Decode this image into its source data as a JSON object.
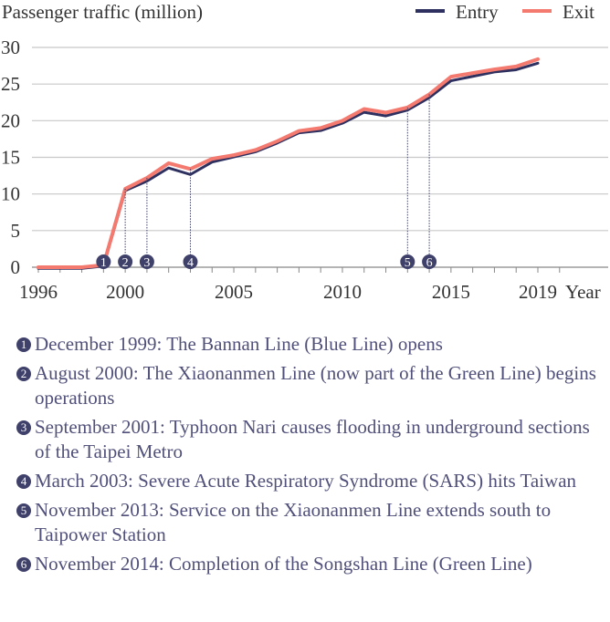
{
  "chart_data": {
    "type": "line",
    "title": "",
    "ylabel": "Passenger traffic (million)",
    "xlabel": "Year",
    "ylim": [
      0,
      30
    ],
    "yticks": [
      0,
      5,
      10,
      15,
      20,
      25,
      30
    ],
    "xlim": [
      1996,
      2019
    ],
    "xticks": [
      1996,
      2000,
      2005,
      2010,
      2015,
      2019
    ],
    "x": [
      1996,
      1997,
      1998,
      1999,
      2000,
      2001,
      2002,
      2003,
      2004,
      2005,
      2006,
      2007,
      2008,
      2009,
      2010,
      2011,
      2012,
      2013,
      2014,
      2015,
      2016,
      2017,
      2018,
      2019
    ],
    "series": [
      {
        "name": "Entry",
        "color": "#2e3160",
        "values": [
          0,
          0,
          0,
          0.3,
          10.6,
          11.9,
          13.7,
          12.8,
          14.5,
          15.2,
          15.9,
          17.1,
          18.5,
          18.8,
          19.8,
          21.3,
          20.8,
          21.6,
          23.3,
          25.6,
          26.2,
          26.8,
          27.1,
          28.0
        ]
      },
      {
        "name": "Exit",
        "color": "#f47a70",
        "values": [
          0,
          0,
          0,
          0.3,
          10.7,
          12.2,
          14.2,
          13.4,
          14.8,
          15.3,
          16.0,
          17.2,
          18.6,
          19.0,
          20.0,
          21.6,
          21.1,
          21.8,
          23.6,
          26.0,
          26.5,
          27.0,
          27.4,
          28.4
        ]
      }
    ],
    "markers": [
      {
        "label": "1",
        "year": 1999
      },
      {
        "label": "2",
        "year": 2000
      },
      {
        "label": "3",
        "year": 2001
      },
      {
        "label": "4",
        "year": 2003
      },
      {
        "label": "5",
        "year": 2013
      },
      {
        "label": "6",
        "year": 2014
      }
    ],
    "legend": "top-right",
    "grid": true
  },
  "notes": [
    {
      "num": "1",
      "text": "December 1999: The Bannan Line (Blue Line) opens"
    },
    {
      "num": "2",
      "text": "August 2000: The Xiaonanmen Line (now part of the Green Line) begins operations"
    },
    {
      "num": "3",
      "text": "September 2001: Typhoon Nari causes flooding in underground sections of the Taipei Metro"
    },
    {
      "num": "4",
      "text": "March 2003: Severe Acute Respiratory Syndrome (SARS) hits Taiwan"
    },
    {
      "num": "5",
      "text": "November 2013: Service on the Xiaonanmen Line extends south to Taipower Station"
    },
    {
      "num": "6",
      "text": "November 2014: Completion of the Songshan Line (Green Line)"
    }
  ]
}
